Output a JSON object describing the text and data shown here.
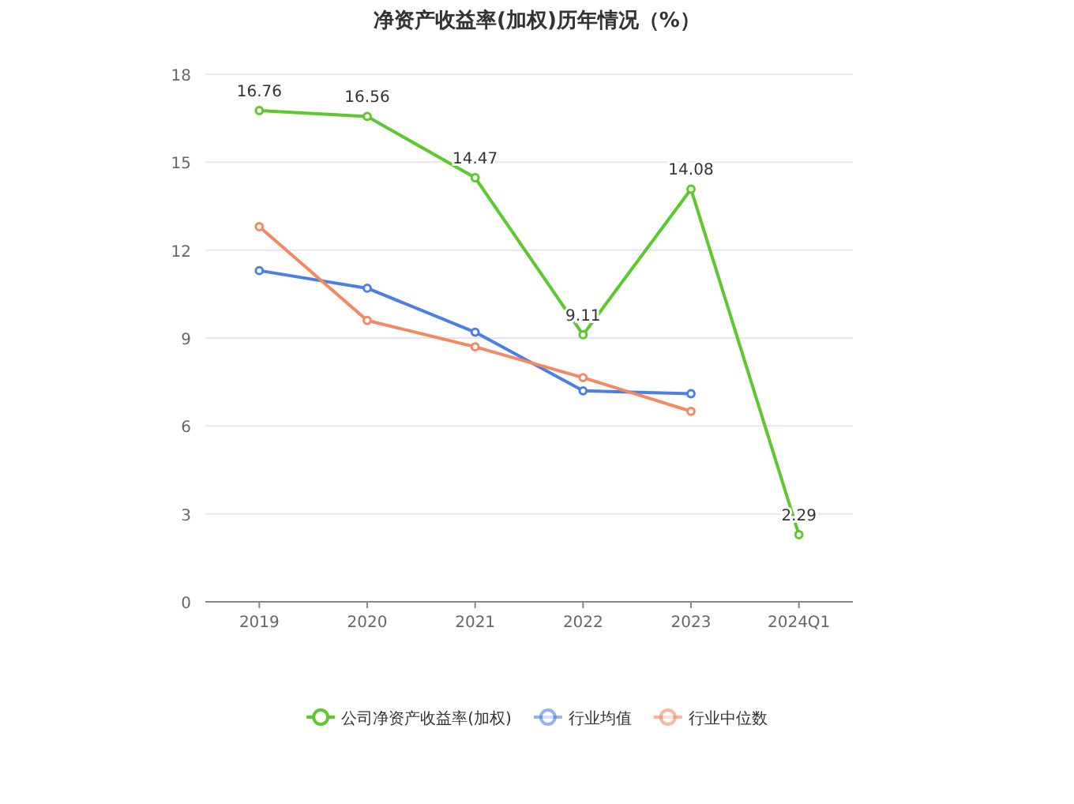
{
  "chart_data": {
    "type": "line",
    "title": "净资产收益率(加权)历年情况（%）",
    "categories": [
      "2019",
      "2020",
      "2021",
      "2022",
      "2023",
      "2024Q1"
    ],
    "ylim": [
      0,
      18
    ],
    "yticks": [
      0,
      3,
      6,
      9,
      12,
      15,
      18
    ],
    "grid": "y",
    "legend": "bottom",
    "marker": "circle",
    "line_style": "solid",
    "series": [
      {
        "name": "公司净资产收益率(加权)",
        "color": "#5ac92a",
        "values": [
          16.76,
          16.56,
          14.47,
          9.11,
          14.08,
          2.29
        ],
        "value_labels": [
          "16.76",
          "16.56",
          "14.47",
          "9.11",
          "14.08",
          "2.29"
        ]
      },
      {
        "name": "行业均值",
        "color": "#4a7fe8",
        "values": [
          11.3,
          10.7,
          9.2,
          7.2,
          7.1,
          null
        ]
      },
      {
        "name": "行业中位数",
        "color": "#f7875f",
        "values": [
          12.8,
          9.6,
          8.7,
          7.65,
          6.5,
          null
        ]
      }
    ]
  }
}
